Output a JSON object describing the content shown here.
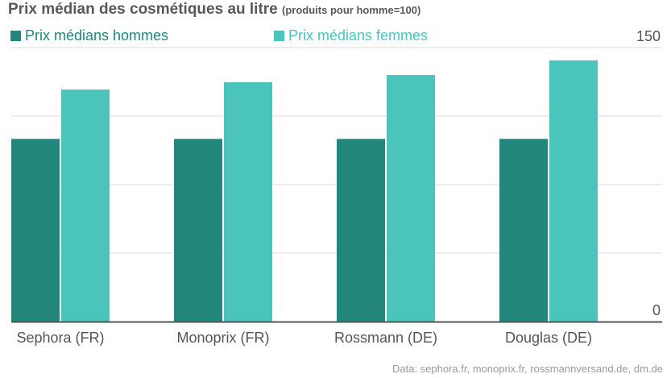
{
  "title": "Prix médian des cosmétiques au litre",
  "subtitle": "(produits pour homme=100)",
  "source": "Data: sephora.fr, monoprix.fr, rossmannversand.de, dm.de",
  "colors": {
    "men": "#22867d",
    "women": "#4bc5bc",
    "title": "#585858",
    "grid": "#dedede",
    "axis": "#555555",
    "source": "#9a9a9a"
  },
  "chart_data": {
    "type": "bar",
    "categories": [
      "Sephora (FR)",
      "Monoprix (FR)",
      "Rossmann (DE)",
      "Douglas (DE)"
    ],
    "series": [
      {
        "name": "Prix médians hommes",
        "values": [
          100,
          100,
          100,
          100
        ]
      },
      {
        "name": "Prix médians femmes",
        "values": [
          127,
          131,
          135,
          143
        ]
      }
    ],
    "ylim": [
      0,
      150
    ],
    "y_tick_labels": [
      "0",
      "150"
    ],
    "grid": true,
    "legend_position": "top"
  }
}
